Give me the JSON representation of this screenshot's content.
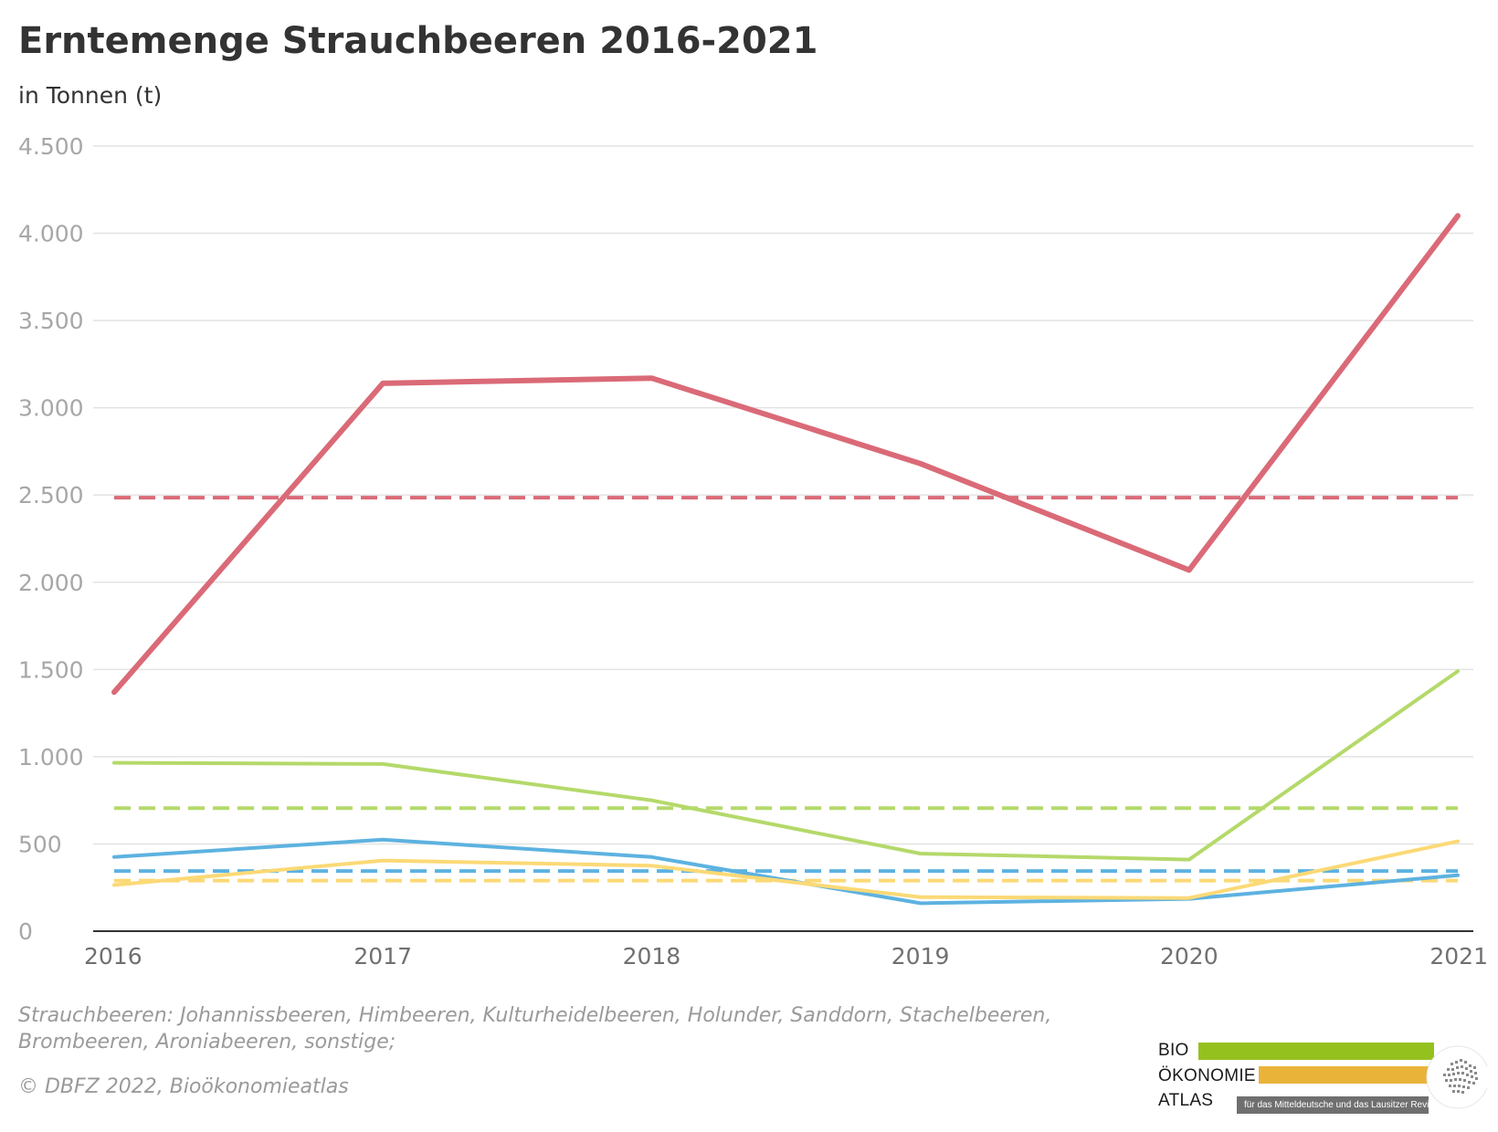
{
  "title": "Erntemenge Strauchbeeren 2016-2021",
  "subtitle": "in Tonnen (t)",
  "footnote": "Strauchbeeren: Johannissbeeren, Himbeeren, Kulturheidelbeeren, Holunder, Sanddorn, Stachelbeeren, Brombeeren, Aroniabeeren, sonstige;",
  "copyright": "© DBFZ 2022, Bioökonomieatlas",
  "logo": {
    "word1": "BIO",
    "word2": "ÖKONOMIE",
    "word3": "ATLAS",
    "tagline": "für das Mitteldeutsche und das Lausitzer Revier",
    "colors": {
      "green": "#95c11f",
      "yellow": "#e9b33a",
      "gray": "#6f6f6f"
    }
  },
  "chart_data": {
    "type": "line",
    "x": [
      2016,
      2017,
      2018,
      2019,
      2020,
      2021
    ],
    "ylim": [
      0,
      4500
    ],
    "yticks": [
      0,
      500,
      1000,
      1500,
      2000,
      2500,
      3000,
      3500,
      4000,
      4500
    ],
    "ytick_labels": [
      "0",
      "500",
      "1.000",
      "1.500",
      "2.000",
      "2.500",
      "3.000",
      "3.500",
      "4.000",
      "4.500"
    ],
    "xtick_labels": [
      "2016",
      "2017",
      "2018",
      "2019",
      "2020",
      "2021"
    ],
    "grid": true,
    "series": [
      {
        "values": [
          1370,
          3140,
          3170,
          2680,
          2070,
          4100
        ],
        "color": "#da6a77",
        "style": "solid"
      },
      {
        "values": [
          965,
          958,
          750,
          445,
          410,
          1490
        ],
        "color": "#b4d96a",
        "style": "solid"
      },
      {
        "values": [
          425,
          525,
          425,
          160,
          185,
          320
        ],
        "color": "#5db2e0",
        "style": "solid"
      },
      {
        "values": [
          265,
          405,
          375,
          195,
          190,
          515
        ],
        "color": "#fbd976",
        "style": "solid"
      },
      {
        "values": [
          2485,
          2485,
          2485,
          2485,
          2485,
          2485
        ],
        "color": "#da6a77",
        "style": "dashed"
      },
      {
        "values": [
          705,
          705,
          705,
          705,
          705,
          705
        ],
        "color": "#b4d96a",
        "style": "dashed"
      },
      {
        "values": [
          345,
          345,
          345,
          345,
          345,
          345
        ],
        "color": "#5db2e0",
        "style": "dashed"
      },
      {
        "values": [
          290,
          290,
          290,
          290,
          290,
          290
        ],
        "color": "#fbd976",
        "style": "dashed"
      }
    ]
  }
}
